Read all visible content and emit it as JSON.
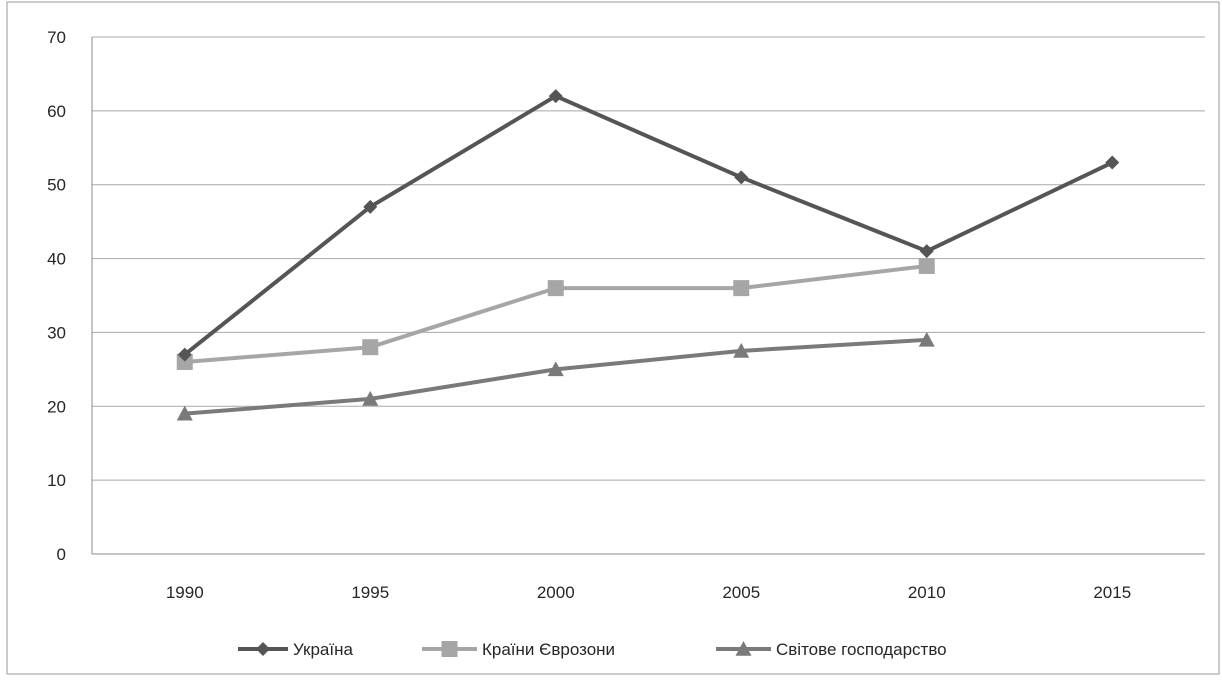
{
  "chart_data": {
    "type": "line",
    "categories": [
      "1990",
      "1995",
      "2000",
      "2005",
      "2010",
      "2015"
    ],
    "ylim": [
      0,
      70
    ],
    "yticks": [
      0,
      10,
      20,
      30,
      40,
      50,
      60,
      70
    ],
    "grid": true,
    "legend_position": "bottom",
    "series": [
      {
        "name": "Україна",
        "marker": "diamond",
        "color": "#555555",
        "values": [
          27,
          47,
          62,
          51,
          41,
          53
        ]
      },
      {
        "name": "Країни Єврозони",
        "marker": "square",
        "color": "#a6a6a6",
        "values": [
          26,
          28,
          36,
          36,
          39,
          null
        ]
      },
      {
        "name": "Світове господарство",
        "marker": "triangle",
        "color": "#7a7a7a",
        "values": [
          19,
          21,
          25,
          27.5,
          29,
          null
        ]
      }
    ]
  }
}
